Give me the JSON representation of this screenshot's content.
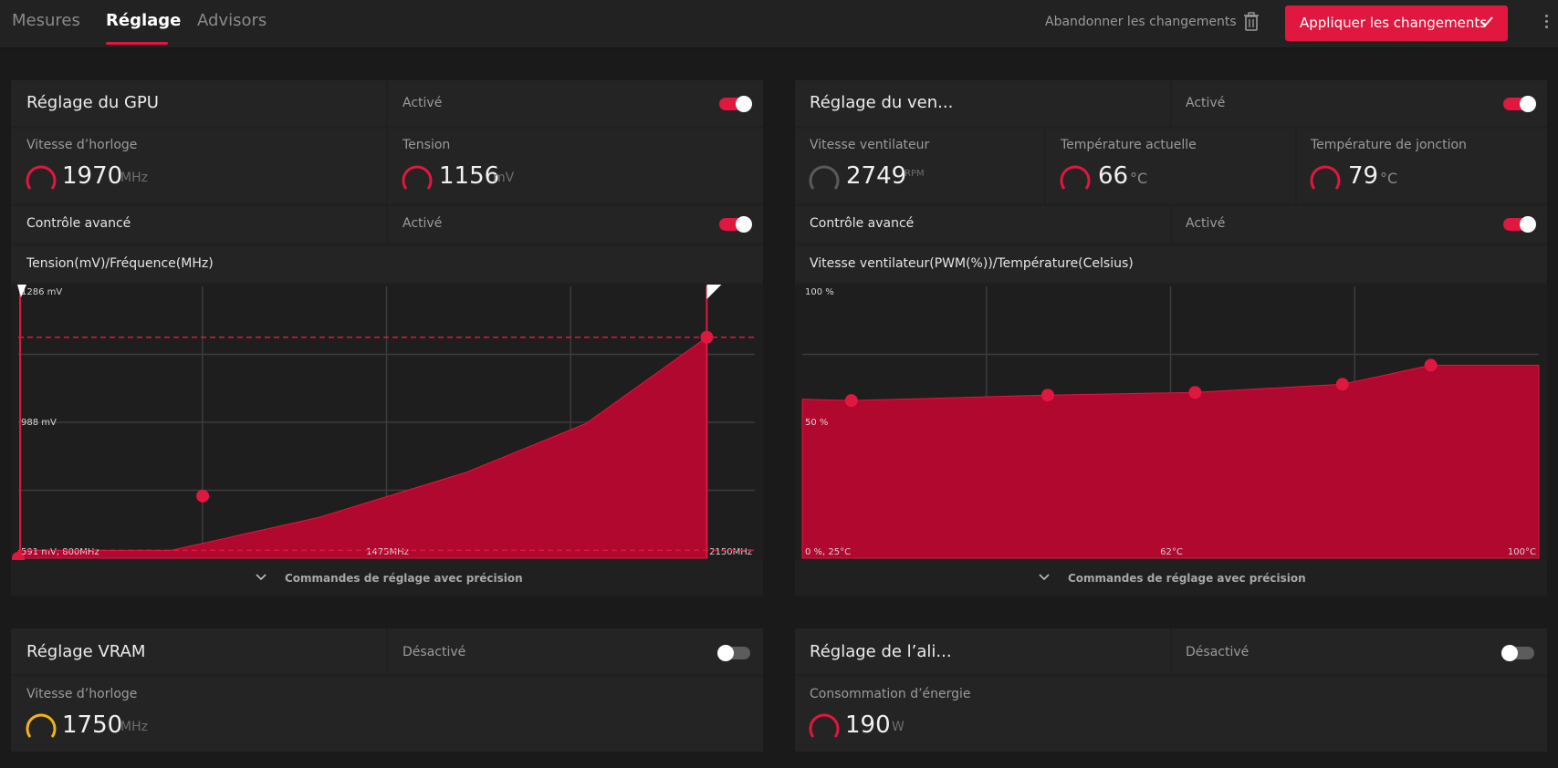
{
  "tabs": [
    {
      "label": "Mesures"
    },
    {
      "label": "Réglage"
    },
    {
      "label": "Advisors"
    }
  ],
  "header": {
    "discard_label": "Abandonner les changements",
    "apply_label": "Appliquer les changements"
  },
  "gpu": {
    "title": "Réglage du GPU",
    "status": "Activé",
    "clock_label": "Vitesse d’horloge",
    "clock_value": "1970",
    "clock_unit": "MHz",
    "voltage_label": "Tension",
    "voltage_value": "1156",
    "voltage_unit": "mV",
    "advanced_label": "Contrôle avancé",
    "advanced_status": "Activé",
    "curve_title": "Tension(mV)/Fréquence(MHz)",
    "fine_controls": "Commandes de réglage avec précision"
  },
  "fan": {
    "title": "Réglage du ven...",
    "status": "Activé",
    "speed_label": "Vitesse ventilateur",
    "speed_value": "2749",
    "speed_unit": "RPM",
    "temp_label": "Température actuelle",
    "temp_value": "66",
    "temp_unit": "°C",
    "junction_label": "Température de jonction",
    "junction_value": "79",
    "junction_unit": "°C",
    "advanced_label": "Contrôle avancé",
    "advanced_status": "Activé",
    "curve_title": "Vitesse ventilateur(PWM(%))/Température(Celsius)",
    "fine_controls": "Commandes de réglage avec précision"
  },
  "vram": {
    "title": "Réglage VRAM",
    "status": "Désactivé",
    "clock_label": "Vitesse d’horloge",
    "clock_value": "1750",
    "clock_unit": "MHz"
  },
  "power": {
    "title": "Réglage de l’ali...",
    "status": "Désactivé",
    "consumption_label": "Consommation d’énergie",
    "consumption_value": "190",
    "consumption_unit": "W"
  },
  "chart_data": [
    {
      "type": "area",
      "title": "Tension(mV)/Fréquence(MHz)",
      "xlabel": "Fréquence (MHz)",
      "ylabel": "Tension (mV)",
      "tick_labels": {
        "origin": "591 mV, 800MHz",
        "x_mid": "1475MHz",
        "x_max": "2150MHz",
        "y_mid": "988 mV",
        "y_max": "1286 mV"
      },
      "xlim": [
        800,
        2150
      ],
      "ylim": [
        591,
        1286
      ],
      "points": [
        [
          800,
          591
        ],
        [
          1138,
          750
        ],
        [
          2062,
          1156
        ]
      ],
      "curve": [
        [
          800,
          611
        ],
        [
          1080,
          611
        ],
        [
          1350,
          695
        ],
        [
          1620,
          810
        ],
        [
          1840,
          935
        ],
        [
          2062,
          1156
        ]
      ],
      "grid": true,
      "colors": {
        "fill": "#b0082f",
        "line": "#e0173e"
      }
    },
    {
      "type": "area",
      "title": "Vitesse ventilateur(PWM(%))/Température(Celsius)",
      "xlabel": "Température (Celsius)",
      "ylabel": "Vitesse ventilateur (PWM %)",
      "tick_labels": {
        "origin": "0 %, 25°C",
        "x_mid": "62°C",
        "x_max": "100°C",
        "y_mid": "50 %",
        "y_max": "100 %"
      },
      "xlim": [
        25,
        100
      ],
      "ylim": [
        0,
        100
      ],
      "points": [
        [
          30,
          58
        ],
        [
          50,
          60
        ],
        [
          65,
          61
        ],
        [
          80,
          64
        ],
        [
          89,
          71
        ]
      ],
      "grid": true,
      "colors": {
        "fill": "#b0082f",
        "line": "#e0173e"
      }
    }
  ]
}
